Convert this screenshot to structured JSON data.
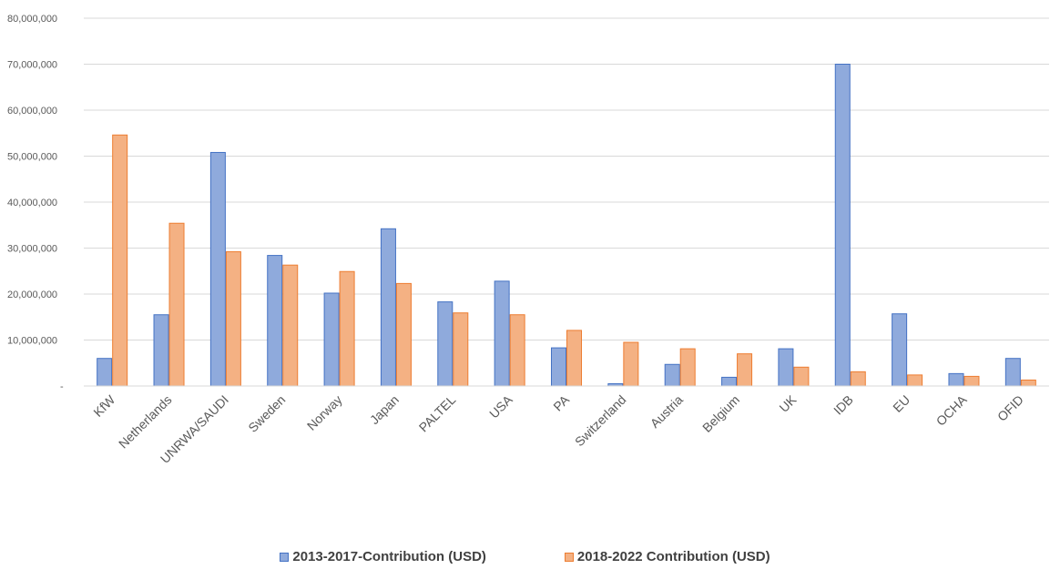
{
  "chart_data": {
    "type": "bar",
    "title": "",
    "xlabel": "",
    "ylabel": "",
    "ylim": [
      0,
      80000000
    ],
    "yticks": [
      0,
      10000000,
      20000000,
      30000000,
      40000000,
      50000000,
      60000000,
      70000000,
      80000000
    ],
    "ytick_labels": [
      "-",
      "10,000,000",
      "20,000,000",
      "30,000,000",
      "40,000,000",
      "50,000,000",
      "60,000,000",
      "70,000,000",
      "80,000,000"
    ],
    "grid": true,
    "legend_position": "bottom",
    "categories": [
      "KfW",
      "Netherlands",
      "UNRWA/SAUDI",
      "Sweden",
      "Norway",
      "Japan",
      "PALTEL",
      "USA",
      "PA",
      "Switzerland",
      "Austria",
      "Belgium",
      "UK",
      "IDB",
      "EU",
      "OCHA",
      "OFID"
    ],
    "series": [
      {
        "name": "2013-2017-Contribution (USD)",
        "color": "#8faadc",
        "stroke": "#4472c4",
        "values": [
          6000000,
          15500000,
          50800000,
          28400000,
          20200000,
          34200000,
          18300000,
          22800000,
          8300000,
          500000,
          4700000,
          1900000,
          8100000,
          70000000,
          15700000,
          2700000,
          6000000
        ]
      },
      {
        "name": "2018-2022 Contribution (USD)",
        "color": "#f4b183",
        "stroke": "#ed7d31",
        "values": [
          54600000,
          35400000,
          29200000,
          26300000,
          24900000,
          22300000,
          15900000,
          15500000,
          12100000,
          9500000,
          8100000,
          7000000,
          4100000,
          3100000,
          2400000,
          2100000,
          1300000
        ]
      }
    ]
  }
}
